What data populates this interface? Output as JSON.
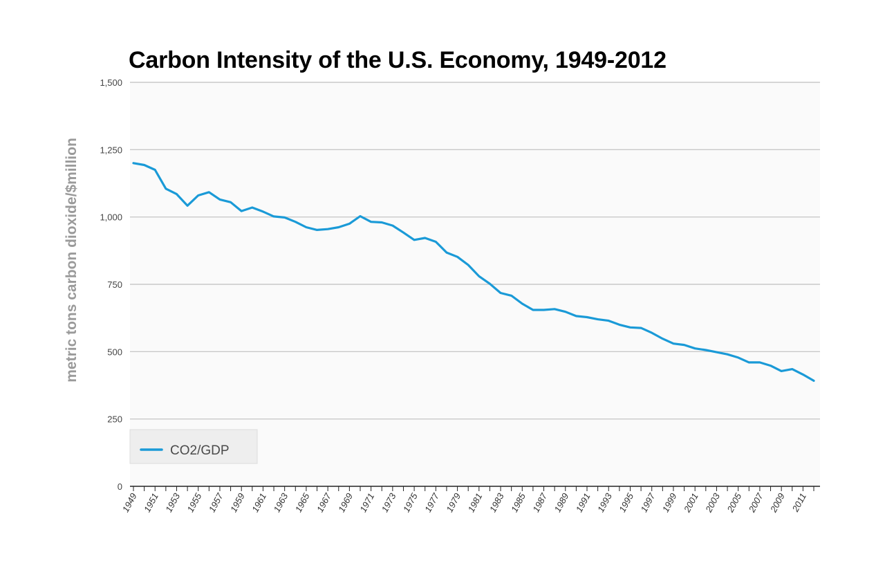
{
  "chart_data": {
    "type": "line",
    "title": "Carbon Intensity of the U.S. Economy, 1949-2012",
    "ylabel": "metric tons carbon dioxide/$million",
    "xlabel": "",
    "ylim": [
      0,
      1500
    ],
    "y_ticks": [
      "0",
      "250",
      "500",
      "750",
      "1,000",
      "1,250",
      "1,500"
    ],
    "y_tick_values": [
      0,
      250,
      500,
      750,
      1000,
      1250,
      1500
    ],
    "x_tick_labels": [
      "1949",
      "1951",
      "1953",
      "1955",
      "1957",
      "1959",
      "1961",
      "1963",
      "1965",
      "1967",
      "1969",
      "1971",
      "1973",
      "1975",
      "1977",
      "1979",
      "1981",
      "1983",
      "1985",
      "1987",
      "1989",
      "1991",
      "1993",
      "1995",
      "1997",
      "1999",
      "2001",
      "2003",
      "2005",
      "2007",
      "2009",
      "2011"
    ],
    "x": [
      1949,
      1950,
      1951,
      1952,
      1953,
      1954,
      1955,
      1956,
      1957,
      1958,
      1959,
      1960,
      1961,
      1962,
      1963,
      1964,
      1965,
      1966,
      1967,
      1968,
      1969,
      1970,
      1971,
      1972,
      1973,
      1974,
      1975,
      1976,
      1977,
      1978,
      1979,
      1980,
      1981,
      1982,
      1983,
      1984,
      1985,
      1986,
      1987,
      1988,
      1989,
      1990,
      1991,
      1992,
      1993,
      1994,
      1995,
      1996,
      1997,
      1998,
      1999,
      2000,
      2001,
      2002,
      2003,
      2004,
      2005,
      2006,
      2007,
      2008,
      2009,
      2010,
      2011,
      2012
    ],
    "series": [
      {
        "name": "CO2/GDP",
        "color": "#1a9ad7",
        "values": [
          1200,
          1193,
          1175,
          1105,
          1085,
          1042,
          1080,
          1092,
          1065,
          1055,
          1022,
          1035,
          1020,
          1002,
          998,
          982,
          962,
          952,
          955,
          962,
          975,
          1003,
          982,
          980,
          968,
          942,
          915,
          922,
          908,
          868,
          852,
          822,
          780,
          752,
          718,
          708,
          678,
          655,
          655,
          658,
          648,
          632,
          628,
          620,
          615,
          600,
          590,
          588,
          570,
          548,
          530,
          525,
          512,
          506,
          498,
          490,
          478,
          460,
          460,
          448,
          428,
          435,
          415,
          392
        ]
      }
    ],
    "grid": true,
    "legend": {
      "position": "bottom-left",
      "label": "CO2/GDP"
    }
  }
}
